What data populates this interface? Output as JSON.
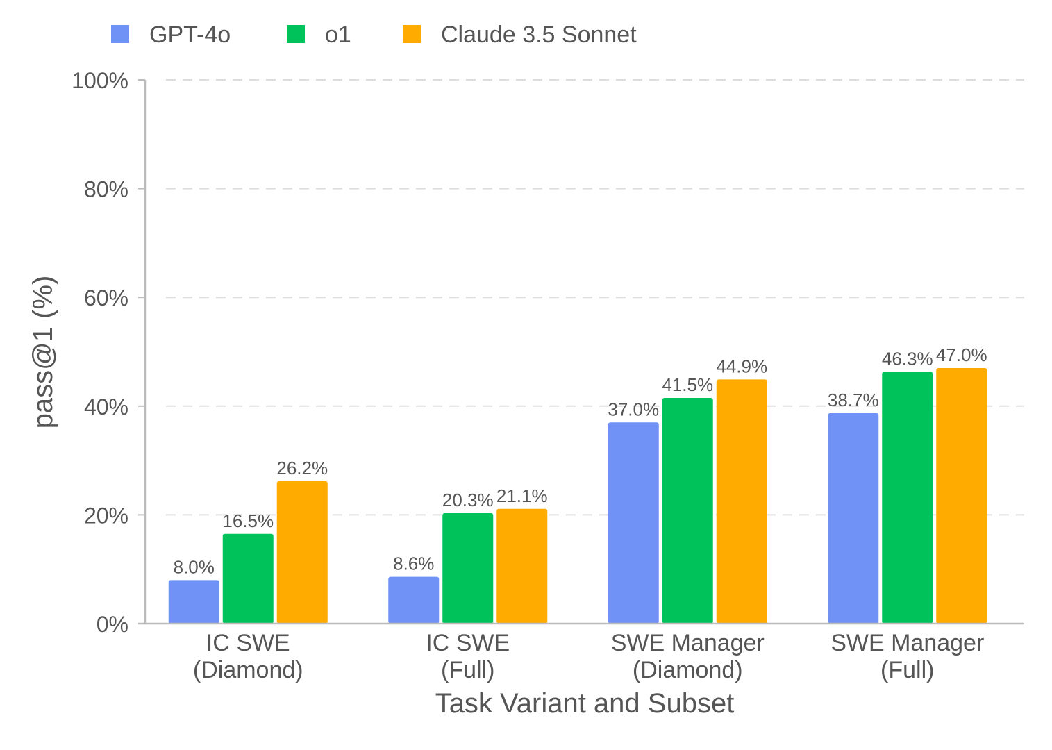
{
  "chart_data": {
    "type": "bar",
    "title": "",
    "xlabel": "Task Variant and Subset",
    "ylabel": "pass@1 (%)",
    "ylim": [
      0,
      100
    ],
    "yticks": [
      0,
      20,
      40,
      60,
      80,
      100
    ],
    "ytick_labels": [
      "0%",
      "20%",
      "40%",
      "60%",
      "80%",
      "100%"
    ],
    "grid": "horizontal dashed",
    "legend_placement": "top-left",
    "categories": [
      [
        "IC SWE",
        "(Diamond)"
      ],
      [
        "IC SWE",
        "(Full)"
      ],
      [
        "SWE Manager",
        "(Diamond)"
      ],
      [
        "SWE Manager",
        "(Full)"
      ]
    ],
    "series": [
      {
        "name": "GPT-4o",
        "color": "#7092f6",
        "values": [
          8.0,
          8.6,
          37.0,
          38.7
        ]
      },
      {
        "name": "o1",
        "color": "#00c25a",
        "values": [
          16.5,
          20.3,
          41.5,
          46.3
        ]
      },
      {
        "name": "Claude 3.5 Sonnet",
        "color": "#ffab00",
        "values": [
          26.2,
          21.1,
          44.9,
          47.0
        ]
      }
    ]
  }
}
